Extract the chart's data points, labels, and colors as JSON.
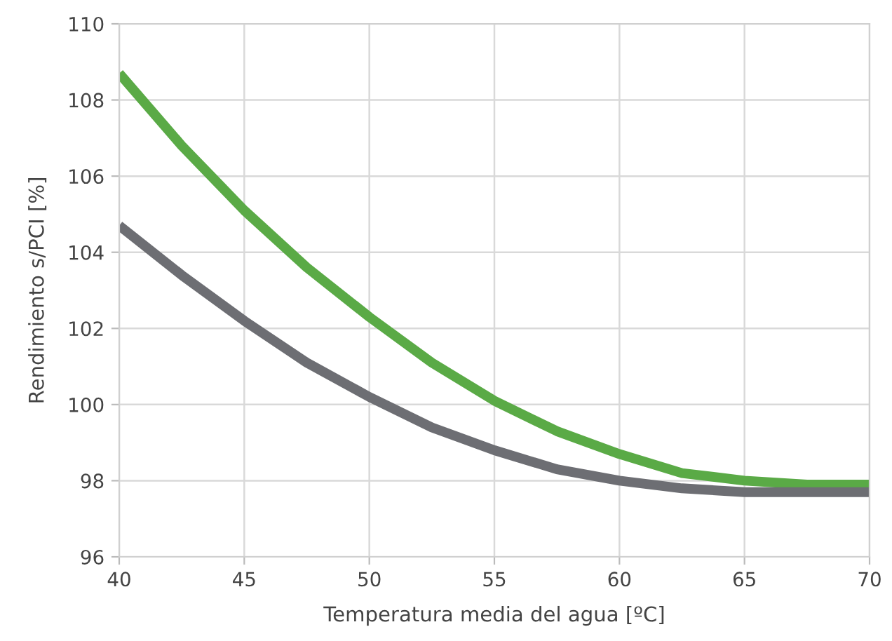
{
  "chart_data": {
    "type": "line",
    "xlabel": "Temperatura media del agua [ºC]",
    "ylabel": "Rendimiento s/PCI [%]",
    "x": [
      40,
      42.5,
      45,
      47.5,
      50,
      52.5,
      55,
      57.5,
      60,
      62.5,
      65,
      67.5,
      70
    ],
    "series": [
      {
        "color": "#5aaa46",
        "values": [
          108.7,
          106.8,
          105.1,
          103.6,
          102.3,
          101.1,
          100.1,
          99.3,
          98.7,
          98.2,
          98.0,
          97.9,
          97.9
        ]
      },
      {
        "color": "#6d6e73",
        "values": [
          104.7,
          103.4,
          102.2,
          101.1,
          100.2,
          99.4,
          98.8,
          98.3,
          98.0,
          97.8,
          97.7,
          97.7,
          97.7
        ]
      }
    ],
    "xlim": [
      40,
      70
    ],
    "xticks": [
      40,
      45,
      50,
      55,
      60,
      65,
      70
    ],
    "ylim": [
      96,
      110
    ],
    "yticks": [
      96,
      98,
      100,
      102,
      104,
      106,
      108,
      110
    ],
    "grid": true,
    "marker": "none",
    "line_style": "solid"
  }
}
